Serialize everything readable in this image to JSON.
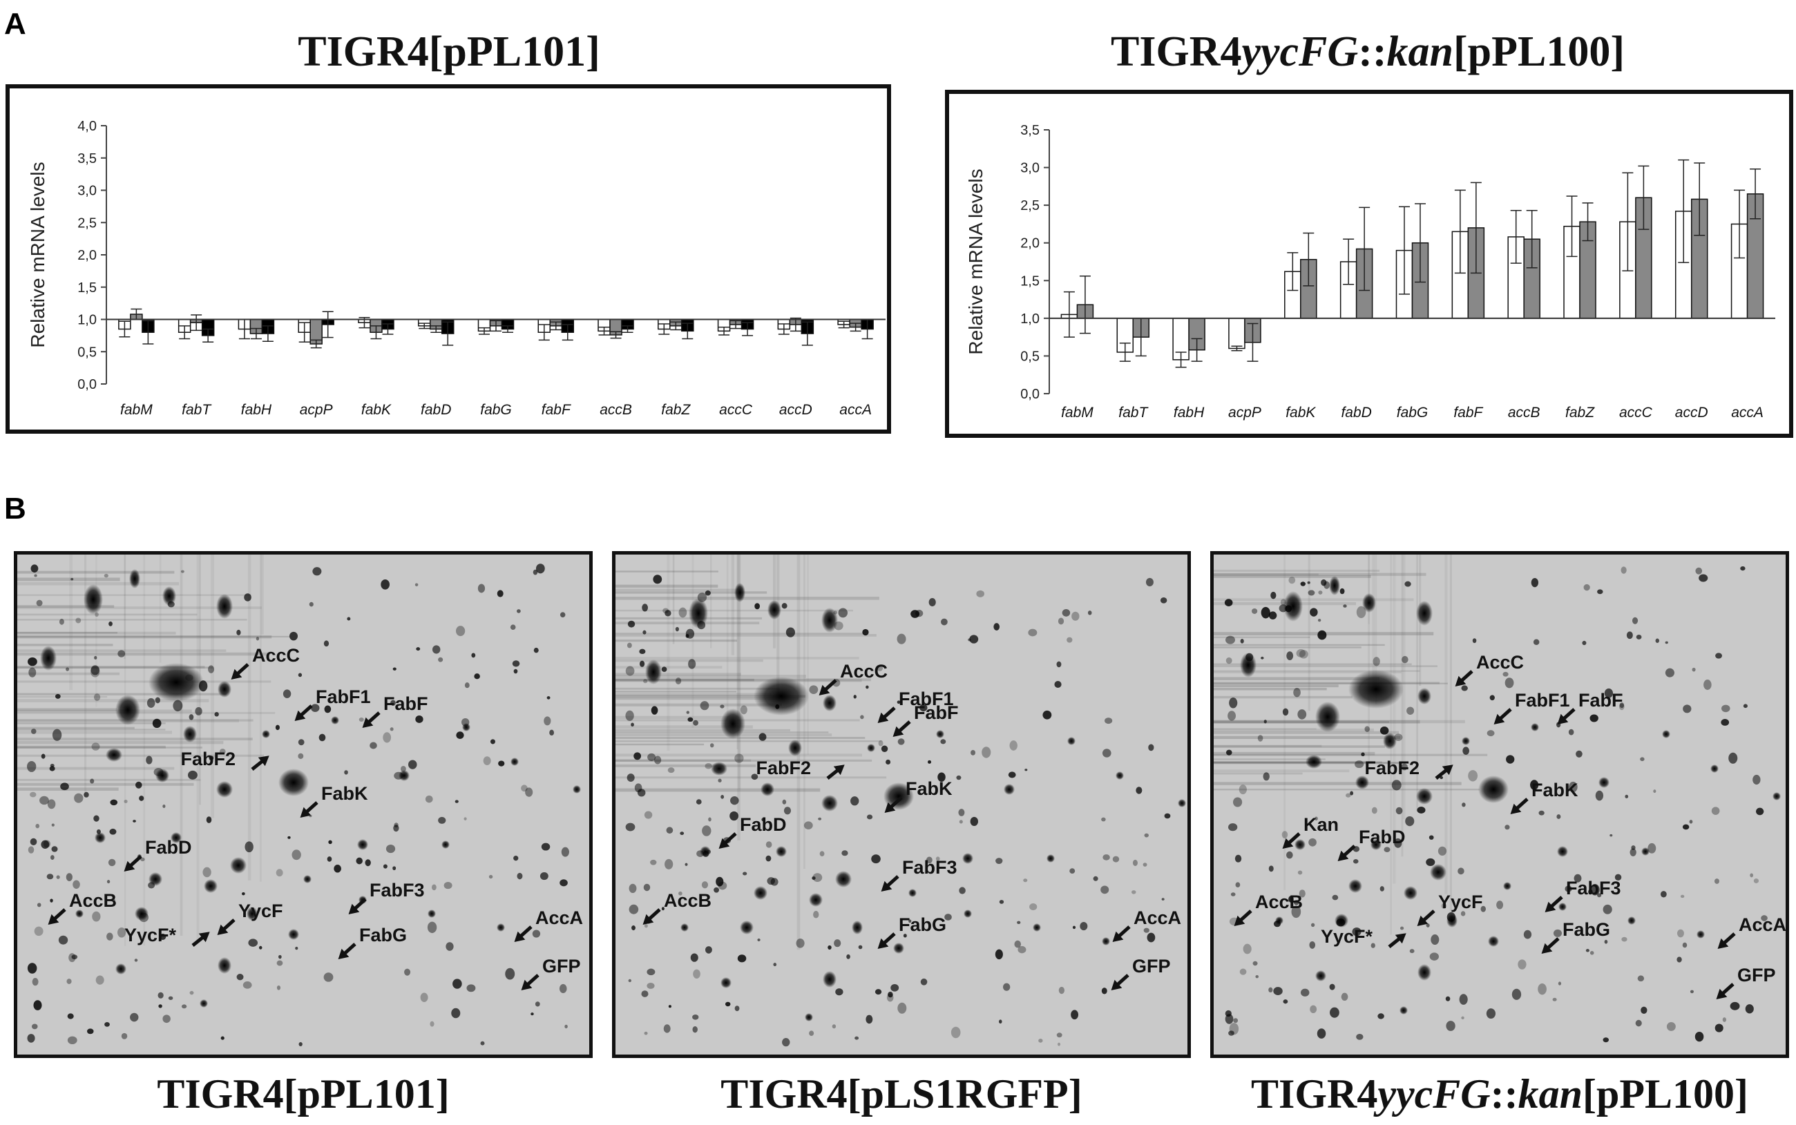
{
  "panel_a": {
    "label": "A",
    "left": {
      "title": "TIGR4[pPL101]"
    },
    "right": {
      "title_parts": [
        "TIGR4",
        "yycFG",
        "::",
        "kan",
        "[pPL100]"
      ]
    }
  },
  "panel_b": {
    "label": "B",
    "captions": {
      "gel1": "TIGR4[pPL101]",
      "gel2": "TIGR4[pLS1RGFP]",
      "gel3_parts": [
        "TIGR4",
        "yycFG",
        "::",
        "kan",
        "[pPL100]"
      ]
    },
    "gel1_labels": [
      "AccC",
      "FabF1",
      "FabF",
      "FabF2",
      "FabK",
      "FabD",
      "AccB",
      "YycF",
      "YycF*",
      "FabF3",
      "FabG",
      "AccA",
      "GFP"
    ],
    "gel2_labels": [
      "AccC",
      "FabF1",
      "FabF",
      "FabF2",
      "FabK",
      "FabD",
      "AccB",
      "FabF3",
      "FabG",
      "AccA",
      "GFP"
    ],
    "gel3_labels": [
      "AccC",
      "FabF1",
      "FabF",
      "FabF2",
      "FabK",
      "Kan",
      "FabD",
      "AccB",
      "YycF",
      "YycF*",
      "FabF3",
      "FabG",
      "AccA",
      "GFP"
    ]
  },
  "chart_data": [
    {
      "type": "bar",
      "title": "TIGR4[pPL101]",
      "ylabel": "Relative mRNA levels",
      "ylim": [
        0,
        4.0
      ],
      "yticks": [
        "0,0",
        "0,5",
        "1,0",
        "1,5",
        "2,0",
        "2,5",
        "3,0",
        "3,5",
        "4,0"
      ],
      "baseline": 1.0,
      "categories": [
        "fabM",
        "fabT",
        "fabH",
        "acpP",
        "fabK",
        "fabD",
        "fabG",
        "fabF",
        "accB",
        "fabZ",
        "accC",
        "accD",
        "accA"
      ],
      "series": [
        {
          "color": "#ffffff",
          "values": [
            0.85,
            0.8,
            0.85,
            0.8,
            0.95,
            0.9,
            0.82,
            0.8,
            0.82,
            0.85,
            0.82,
            0.85,
            0.92
          ],
          "errors": [
            0.12,
            0.1,
            0.15,
            0.15,
            0.08,
            0.04,
            0.05,
            0.12,
            0.06,
            0.08,
            0.06,
            0.08,
            0.05
          ]
        },
        {
          "color": "#888888",
          "values": [
            1.08,
            0.95,
            0.78,
            0.62,
            0.8,
            0.85,
            0.9,
            0.9,
            0.76,
            0.9,
            0.92,
            0.92,
            0.88
          ],
          "errors": [
            0.08,
            0.12,
            0.08,
            0.06,
            0.1,
            0.05,
            0.08,
            0.06,
            0.05,
            0.06,
            0.06,
            0.1,
            0.06
          ]
        },
        {
          "color": "#000000",
          "values": [
            0.8,
            0.75,
            0.78,
            0.92,
            0.85,
            0.78,
            0.85,
            0.8,
            0.85,
            0.82,
            0.85,
            0.78,
            0.85
          ],
          "errors": [
            0.18,
            0.1,
            0.12,
            0.2,
            0.08,
            0.18,
            0.05,
            0.12,
            0.05,
            0.12,
            0.1,
            0.18,
            0.15
          ]
        }
      ]
    },
    {
      "type": "bar",
      "title": "TIGR4yycFG::kan[pPL100]",
      "ylabel": "Relative mRNA levels",
      "ylim": [
        0,
        3.5
      ],
      "yticks": [
        "0,0",
        "0,5",
        "1,0",
        "1,5",
        "2,0",
        "2,5",
        "3,0",
        "3,5"
      ],
      "baseline": 1.0,
      "categories": [
        "fabM",
        "fabT",
        "fabH",
        "acpP",
        "fabK",
        "fabD",
        "fabG",
        "fabF",
        "accB",
        "fabZ",
        "accC",
        "accD",
        "accA"
      ],
      "series": [
        {
          "color": "#ffffff",
          "values": [
            1.05,
            0.55,
            0.45,
            0.6,
            1.62,
            1.75,
            1.9,
            2.15,
            2.08,
            2.22,
            2.28,
            2.42,
            2.25
          ],
          "errors": [
            0.3,
            0.12,
            0.1,
            0.03,
            0.25,
            0.3,
            0.58,
            0.55,
            0.35,
            0.4,
            0.65,
            0.68,
            0.45
          ]
        },
        {
          "color": "#888888",
          "values": [
            1.18,
            0.75,
            0.58,
            0.68,
            1.78,
            1.92,
            2.0,
            2.2,
            2.05,
            2.28,
            2.6,
            2.58,
            2.65
          ],
          "errors": [
            0.38,
            0.25,
            0.15,
            0.25,
            0.35,
            0.55,
            0.52,
            0.6,
            0.38,
            0.25,
            0.42,
            0.48,
            0.33
          ]
        }
      ]
    }
  ]
}
